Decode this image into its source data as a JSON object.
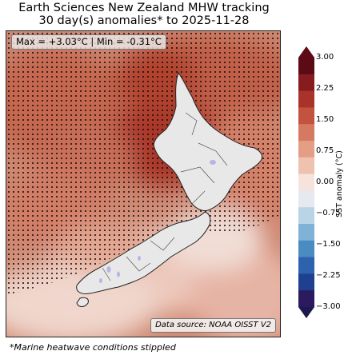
{
  "title": {
    "line1": "Earth Sciences New Zealand MHW tracking",
    "line2": "30 day(s) anomalies* to 2025-11-28"
  },
  "stats": {
    "text": "Max = +3.03°C | Min = -0.31°C"
  },
  "source": {
    "text": "Data source: NOAA OISST V2"
  },
  "footnote": {
    "text": "*Marine heatwave conditions stippled"
  },
  "colorbar": {
    "label": "SST anomaly (°C)",
    "range": [
      -3.0,
      3.0
    ],
    "ticks": [
      "3.00",
      "2.25",
      "1.50",
      "0.75",
      "0.00",
      "−0.75",
      "−1.50",
      "−2.25",
      "−3.00"
    ],
    "colors": [
      "#2b1a5e",
      "#1f3f8f",
      "#2e62ae",
      "#4a8bc2",
      "#7fb2d6",
      "#b9d4e6",
      "#e6e9ee",
      "#f6e3dc",
      "#efc2b0",
      "#e39e85",
      "#d57962",
      "#c2543f",
      "#a9332a",
      "#861c1f",
      "#5c0a15"
    ]
  },
  "map": {
    "land_color": "#e8e8e8",
    "coastline_color": "#222222",
    "ocean_base_color": "#d4937f"
  }
}
